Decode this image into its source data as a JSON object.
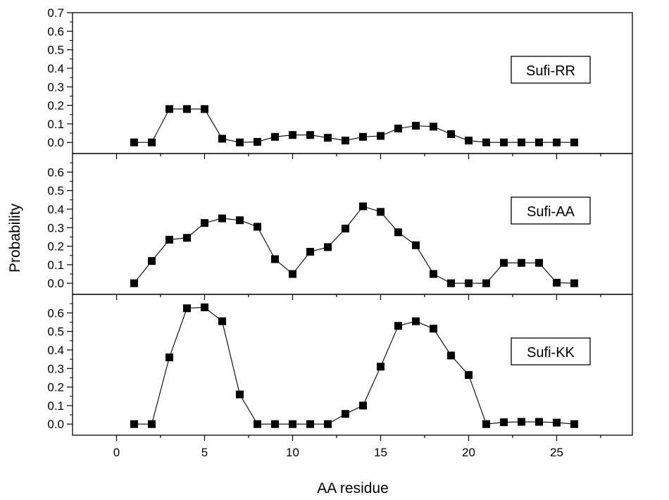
{
  "chart_data": {
    "type": "scatter",
    "xlabel": "AA residue",
    "ylabel": "Probability",
    "xlim": [
      -2.5,
      29.3
    ],
    "x_ticks": [
      0,
      5,
      10,
      15,
      20,
      25
    ],
    "x": [
      1,
      2,
      3,
      4,
      5,
      6,
      7,
      8,
      9,
      10,
      11,
      12,
      13,
      14,
      15,
      16,
      17,
      18,
      19,
      20,
      21,
      22,
      23,
      24,
      25,
      26
    ],
    "marker": "filled-square",
    "line": "solid",
    "color": "#000000",
    "panels": [
      {
        "label": "Sufi-RR",
        "ylim": [
          -0.06,
          0.7
        ],
        "y_ticks": [
          "0.0",
          "0.1",
          "0.2",
          "0.3",
          "0.4",
          "0.5",
          "0.6",
          "0.7"
        ],
        "values": [
          0.0,
          0.0,
          0.18,
          0.18,
          0.18,
          0.02,
          0.0,
          0.003,
          0.03,
          0.04,
          0.04,
          0.025,
          0.01,
          0.03,
          0.035,
          0.075,
          0.09,
          0.085,
          0.045,
          0.01,
          0.0,
          0.0,
          0.0,
          0.0,
          0.0,
          0.0
        ]
      },
      {
        "label": "Sufi-AA",
        "ylim": [
          -0.06,
          0.7
        ],
        "y_ticks": [
          "0.0",
          "0.1",
          "0.2",
          "0.3",
          "0.4",
          "0.5",
          "0.6"
        ],
        "values": [
          0.0,
          0.12,
          0.235,
          0.245,
          0.325,
          0.35,
          0.34,
          0.305,
          0.13,
          0.05,
          0.17,
          0.195,
          0.295,
          0.415,
          0.385,
          0.275,
          0.205,
          0.05,
          0.0,
          0.0,
          0.0,
          0.11,
          0.11,
          0.11,
          0.003,
          0.0
        ]
      },
      {
        "label": "Sufi-KK",
        "ylim": [
          -0.06,
          0.7
        ],
        "y_ticks": [
          "0.0",
          "0.1",
          "0.2",
          "0.3",
          "0.4",
          "0.5",
          "0.6"
        ],
        "values": [
          0.0,
          0.0,
          0.36,
          0.625,
          0.63,
          0.555,
          0.16,
          0.0,
          0.0,
          0.0,
          0.0,
          0.0,
          0.055,
          0.1,
          0.31,
          0.53,
          0.555,
          0.515,
          0.37,
          0.265,
          0.0,
          0.01,
          0.012,
          0.012,
          0.008,
          0.0
        ]
      }
    ]
  }
}
